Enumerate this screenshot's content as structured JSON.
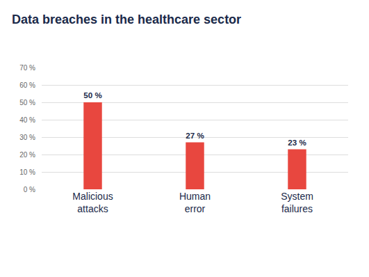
{
  "chart_data": {
    "type": "bar",
    "title": "Data breaches in the healthcare sector",
    "categories": [
      "Malicious attacks",
      "Human error",
      "System failures"
    ],
    "values": [
      50,
      27,
      23
    ],
    "value_labels": [
      "50 %",
      "27 %",
      "23 %"
    ],
    "data_labels": true,
    "color": "#e8473f",
    "ylim": [
      0,
      70
    ],
    "yticks": [
      {
        "value": 0,
        "label": "0 %"
      },
      {
        "value": 10,
        "label": "10 %"
      },
      {
        "value": 20,
        "label": "20 %"
      },
      {
        "value": 30,
        "label": "30 %"
      },
      {
        "value": 40,
        "label": "40 %"
      },
      {
        "value": 50,
        "label": "50 %"
      },
      {
        "value": 60,
        "label": "60 %"
      },
      {
        "value": 70,
        "label": "70 %"
      }
    ],
    "grid": true
  }
}
